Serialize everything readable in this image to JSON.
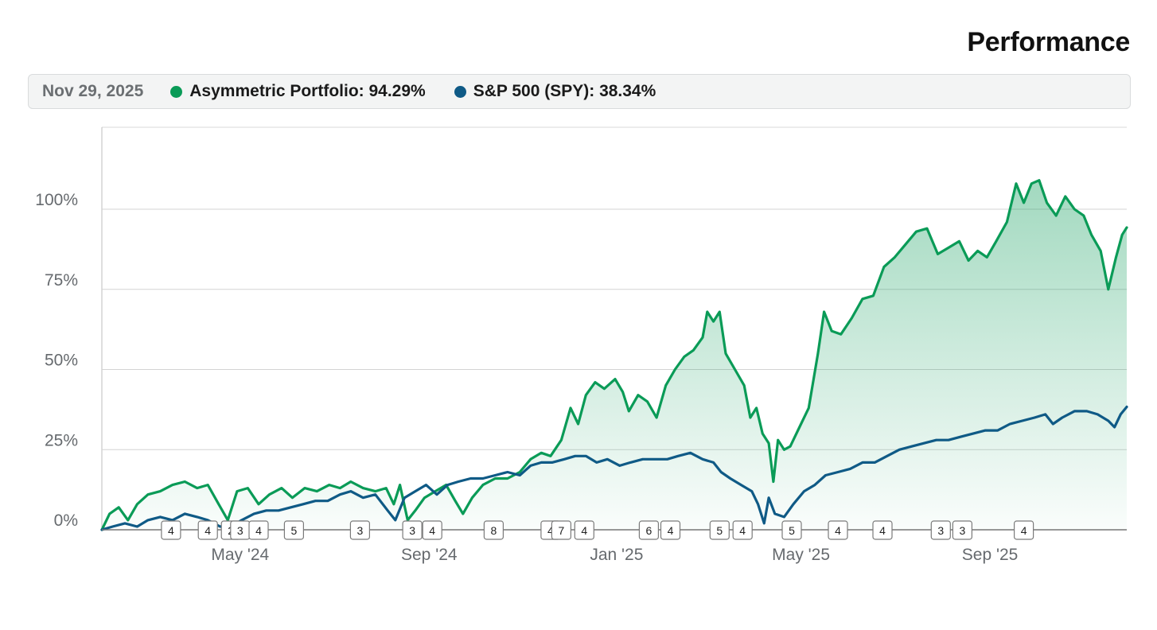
{
  "title": "Performance",
  "legend": {
    "date": "Nov 29, 2025",
    "series": [
      {
        "name": "Asymmetric Portfolio",
        "value": "94.29%",
        "color": "#0a9b57"
      },
      {
        "name": "S&P 500 (SPY)",
        "value": "38.34%",
        "color": "#0f5a86"
      }
    ]
  },
  "chart_data": {
    "type": "line",
    "title": "Performance",
    "xlabel": "",
    "ylabel": "",
    "x_domain": [
      "2024-02-01",
      "2025-11-29"
    ],
    "ylim": [
      0,
      125
    ],
    "y_ticks": [
      0,
      25,
      50,
      75,
      100
    ],
    "y_tick_labels": [
      "0%",
      "25%",
      "50%",
      "75%",
      "100%"
    ],
    "x_ticks": [
      {
        "date": "2024-05-01",
        "label": "May '24"
      },
      {
        "date": "2024-09-01",
        "label": "Sep '24"
      },
      {
        "date": "2025-01-01",
        "label": "Jan '25"
      },
      {
        "date": "2025-05-01",
        "label": "May '25"
      },
      {
        "date": "2025-09-01",
        "label": "Sep '25"
      }
    ],
    "grid": true,
    "area_fill_series": "Asymmetric Portfolio",
    "series": [
      {
        "name": "Asymmetric Portfolio",
        "color": "#0a9b57",
        "points": [
          [
            "2024-02-01",
            0
          ],
          [
            "2024-02-06",
            5
          ],
          [
            "2024-02-12",
            7
          ],
          [
            "2024-02-18",
            3
          ],
          [
            "2024-02-24",
            8
          ],
          [
            "2024-03-02",
            11
          ],
          [
            "2024-03-10",
            12
          ],
          [
            "2024-03-18",
            14
          ],
          [
            "2024-03-26",
            15
          ],
          [
            "2024-04-03",
            13
          ],
          [
            "2024-04-10",
            14
          ],
          [
            "2024-04-17",
            8
          ],
          [
            "2024-04-23",
            3
          ],
          [
            "2024-04-29",
            12
          ],
          [
            "2024-05-06",
            13
          ],
          [
            "2024-05-13",
            8
          ],
          [
            "2024-05-20",
            11
          ],
          [
            "2024-05-28",
            13
          ],
          [
            "2024-06-04",
            10
          ],
          [
            "2024-06-12",
            13
          ],
          [
            "2024-06-20",
            12
          ],
          [
            "2024-06-28",
            14
          ],
          [
            "2024-07-05",
            13
          ],
          [
            "2024-07-12",
            15
          ],
          [
            "2024-07-20",
            13
          ],
          [
            "2024-07-28",
            12
          ],
          [
            "2024-08-04",
            13
          ],
          [
            "2024-08-09",
            8
          ],
          [
            "2024-08-13",
            14
          ],
          [
            "2024-08-18",
            3
          ],
          [
            "2024-08-23",
            6
          ],
          [
            "2024-08-29",
            10
          ],
          [
            "2024-09-05",
            12
          ],
          [
            "2024-09-12",
            14
          ],
          [
            "2024-09-18",
            9
          ],
          [
            "2024-09-23",
            5
          ],
          [
            "2024-09-29",
            10
          ],
          [
            "2024-10-06",
            14
          ],
          [
            "2024-10-14",
            16
          ],
          [
            "2024-10-22",
            16
          ],
          [
            "2024-10-30",
            18
          ],
          [
            "2024-11-06",
            22
          ],
          [
            "2024-11-13",
            24
          ],
          [
            "2024-11-19",
            23
          ],
          [
            "2024-11-26",
            28
          ],
          [
            "2024-12-02",
            38
          ],
          [
            "2024-12-07",
            33
          ],
          [
            "2024-12-12",
            42
          ],
          [
            "2024-12-18",
            46
          ],
          [
            "2024-12-24",
            44
          ],
          [
            "2024-12-31",
            47
          ],
          [
            "2025-01-05",
            43
          ],
          [
            "2025-01-09",
            37
          ],
          [
            "2025-01-15",
            42
          ],
          [
            "2025-01-21",
            40
          ],
          [
            "2025-01-27",
            35
          ],
          [
            "2025-02-02",
            45
          ],
          [
            "2025-02-08",
            50
          ],
          [
            "2025-02-14",
            54
          ],
          [
            "2025-02-20",
            56
          ],
          [
            "2025-02-26",
            60
          ],
          [
            "2025-03-01",
            68
          ],
          [
            "2025-03-05",
            65
          ],
          [
            "2025-03-09",
            68
          ],
          [
            "2025-03-13",
            55
          ],
          [
            "2025-03-19",
            50
          ],
          [
            "2025-03-25",
            45
          ],
          [
            "2025-03-29",
            35
          ],
          [
            "2025-04-02",
            38
          ],
          [
            "2025-04-06",
            30
          ],
          [
            "2025-04-10",
            27
          ],
          [
            "2025-04-13",
            15
          ],
          [
            "2025-04-16",
            28
          ],
          [
            "2025-04-20",
            25
          ],
          [
            "2025-04-24",
            26
          ],
          [
            "2025-04-30",
            32
          ],
          [
            "2025-05-06",
            38
          ],
          [
            "2025-05-12",
            55
          ],
          [
            "2025-05-16",
            68
          ],
          [
            "2025-05-21",
            62
          ],
          [
            "2025-05-27",
            61
          ],
          [
            "2025-06-03",
            66
          ],
          [
            "2025-06-10",
            72
          ],
          [
            "2025-06-17",
            73
          ],
          [
            "2025-06-24",
            82
          ],
          [
            "2025-07-01",
            85
          ],
          [
            "2025-07-08",
            89
          ],
          [
            "2025-07-15",
            93
          ],
          [
            "2025-07-22",
            94
          ],
          [
            "2025-07-29",
            86
          ],
          [
            "2025-08-05",
            88
          ],
          [
            "2025-08-12",
            90
          ],
          [
            "2025-08-18",
            84
          ],
          [
            "2025-08-24",
            87
          ],
          [
            "2025-08-30",
            85
          ],
          [
            "2025-09-05",
            90
          ],
          [
            "2025-09-12",
            96
          ],
          [
            "2025-09-18",
            108
          ],
          [
            "2025-09-23",
            102
          ],
          [
            "2025-09-28",
            108
          ],
          [
            "2025-10-03",
            109
          ],
          [
            "2025-10-08",
            102
          ],
          [
            "2025-10-14",
            98
          ],
          [
            "2025-10-20",
            104
          ],
          [
            "2025-10-26",
            100
          ],
          [
            "2025-11-01",
            98
          ],
          [
            "2025-11-06",
            92
          ],
          [
            "2025-11-12",
            87
          ],
          [
            "2025-11-17",
            75
          ],
          [
            "2025-11-22",
            85
          ],
          [
            "2025-11-26",
            92
          ],
          [
            "2025-11-29",
            94.29
          ]
        ]
      },
      {
        "name": "S&P 500 (SPY)",
        "color": "#0f5a86",
        "points": [
          [
            "2024-02-01",
            0
          ],
          [
            "2024-02-08",
            1
          ],
          [
            "2024-02-16",
            2
          ],
          [
            "2024-02-24",
            1
          ],
          [
            "2024-03-02",
            3
          ],
          [
            "2024-03-10",
            4
          ],
          [
            "2024-03-18",
            3
          ],
          [
            "2024-03-26",
            5
          ],
          [
            "2024-04-03",
            4
          ],
          [
            "2024-04-10",
            3
          ],
          [
            "2024-04-18",
            1
          ],
          [
            "2024-04-25",
            1
          ],
          [
            "2024-05-02",
            3
          ],
          [
            "2024-05-10",
            5
          ],
          [
            "2024-05-18",
            6
          ],
          [
            "2024-05-26",
            6
          ],
          [
            "2024-06-03",
            7
          ],
          [
            "2024-06-11",
            8
          ],
          [
            "2024-06-19",
            9
          ],
          [
            "2024-06-27",
            9
          ],
          [
            "2024-07-05",
            11
          ],
          [
            "2024-07-12",
            12
          ],
          [
            "2024-07-20",
            10
          ],
          [
            "2024-07-28",
            11
          ],
          [
            "2024-08-05",
            6
          ],
          [
            "2024-08-10",
            3
          ],
          [
            "2024-08-16",
            10
          ],
          [
            "2024-08-23",
            12
          ],
          [
            "2024-08-30",
            14
          ],
          [
            "2024-09-06",
            11
          ],
          [
            "2024-09-13",
            14
          ],
          [
            "2024-09-20",
            15
          ],
          [
            "2024-09-28",
            16
          ],
          [
            "2024-10-06",
            16
          ],
          [
            "2024-10-14",
            17
          ],
          [
            "2024-10-22",
            18
          ],
          [
            "2024-10-30",
            17
          ],
          [
            "2024-11-06",
            20
          ],
          [
            "2024-11-13",
            21
          ],
          [
            "2024-11-20",
            21
          ],
          [
            "2024-11-28",
            22
          ],
          [
            "2024-12-05",
            23
          ],
          [
            "2024-12-12",
            23
          ],
          [
            "2024-12-19",
            21
          ],
          [
            "2024-12-26",
            22
          ],
          [
            "2025-01-03",
            20
          ],
          [
            "2025-01-10",
            21
          ],
          [
            "2025-01-18",
            22
          ],
          [
            "2025-01-26",
            22
          ],
          [
            "2025-02-03",
            22
          ],
          [
            "2025-02-10",
            23
          ],
          [
            "2025-02-18",
            24
          ],
          [
            "2025-02-26",
            22
          ],
          [
            "2025-03-05",
            21
          ],
          [
            "2025-03-10",
            18
          ],
          [
            "2025-03-16",
            16
          ],
          [
            "2025-03-23",
            14
          ],
          [
            "2025-03-30",
            12
          ],
          [
            "2025-04-03",
            8
          ],
          [
            "2025-04-07",
            2
          ],
          [
            "2025-04-10",
            10
          ],
          [
            "2025-04-14",
            5
          ],
          [
            "2025-04-20",
            4
          ],
          [
            "2025-04-26",
            8
          ],
          [
            "2025-05-03",
            12
          ],
          [
            "2025-05-10",
            14
          ],
          [
            "2025-05-17",
            17
          ],
          [
            "2025-05-25",
            18
          ],
          [
            "2025-06-02",
            19
          ],
          [
            "2025-06-10",
            21
          ],
          [
            "2025-06-18",
            21
          ],
          [
            "2025-06-26",
            23
          ],
          [
            "2025-07-04",
            25
          ],
          [
            "2025-07-12",
            26
          ],
          [
            "2025-07-20",
            27
          ],
          [
            "2025-07-28",
            28
          ],
          [
            "2025-08-05",
            28
          ],
          [
            "2025-08-13",
            29
          ],
          [
            "2025-08-21",
            30
          ],
          [
            "2025-08-29",
            31
          ],
          [
            "2025-09-06",
            31
          ],
          [
            "2025-09-14",
            33
          ],
          [
            "2025-09-22",
            34
          ],
          [
            "2025-09-30",
            35
          ],
          [
            "2025-10-07",
            36
          ],
          [
            "2025-10-12",
            33
          ],
          [
            "2025-10-18",
            35
          ],
          [
            "2025-10-26",
            37
          ],
          [
            "2025-11-03",
            37
          ],
          [
            "2025-11-10",
            36
          ],
          [
            "2025-11-17",
            34
          ],
          [
            "2025-11-21",
            32
          ],
          [
            "2025-11-25",
            36
          ],
          [
            "2025-11-29",
            38.34
          ]
        ]
      }
    ],
    "event_markers": [
      {
        "date": "2024-03-17",
        "label": "4"
      },
      {
        "date": "2024-04-10",
        "label": "4"
      },
      {
        "date": "2024-04-25",
        "label": "2"
      },
      {
        "date": "2024-05-01",
        "label": "3"
      },
      {
        "date": "2024-05-13",
        "label": "4"
      },
      {
        "date": "2024-06-05",
        "label": "5"
      },
      {
        "date": "2024-07-18",
        "label": "3"
      },
      {
        "date": "2024-08-21",
        "label": "3"
      },
      {
        "date": "2024-09-03",
        "label": "4"
      },
      {
        "date": "2024-10-13",
        "label": "8"
      },
      {
        "date": "2024-11-19",
        "label": "4"
      },
      {
        "date": "2024-11-26",
        "label": "7"
      },
      {
        "date": "2024-12-11",
        "label": "4"
      },
      {
        "date": "2025-01-22",
        "label": "6"
      },
      {
        "date": "2025-02-05",
        "label": "4"
      },
      {
        "date": "2025-03-09",
        "label": "5"
      },
      {
        "date": "2025-03-24",
        "label": "4"
      },
      {
        "date": "2025-04-25",
        "label": "5"
      },
      {
        "date": "2025-05-25",
        "label": "4"
      },
      {
        "date": "2025-06-23",
        "label": "4"
      },
      {
        "date": "2025-07-31",
        "label": "3"
      },
      {
        "date": "2025-08-14",
        "label": "3"
      },
      {
        "date": "2025-09-23",
        "label": "4"
      }
    ]
  }
}
